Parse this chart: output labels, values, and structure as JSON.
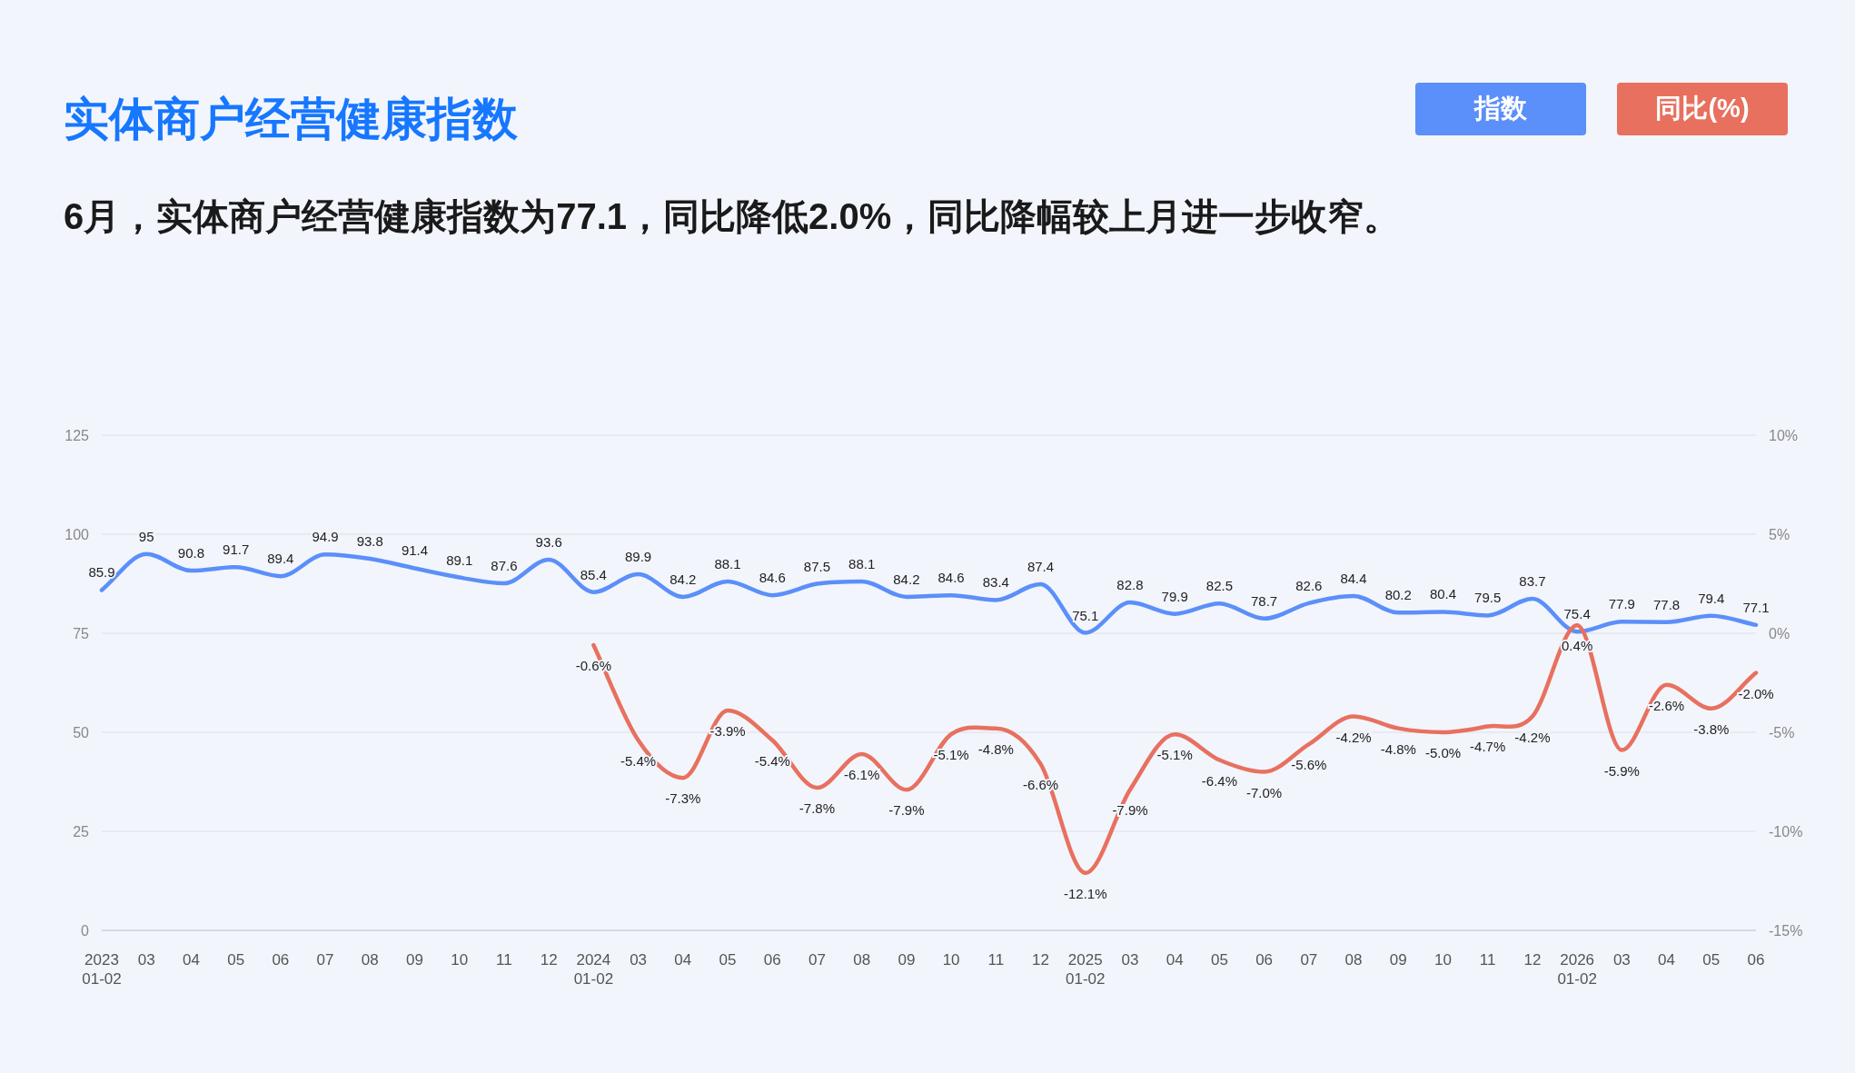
{
  "chart_data": {
    "type": "line",
    "title": "实体商户经营健康指数",
    "subtitle": "6月，实体商户经营健康指数为77.1，同比降低2.0%，同比降幅较上月进一步收窄。",
    "categories": [
      "2023 01-02",
      "03",
      "04",
      "05",
      "06",
      "07",
      "08",
      "09",
      "10",
      "11",
      "12",
      "2024 01-02",
      "03",
      "04",
      "05",
      "06",
      "07",
      "08",
      "09",
      "10",
      "11",
      "12",
      "2025 01-02",
      "03",
      "04",
      "05",
      "06",
      "07",
      "08",
      "09",
      "10",
      "11",
      "12",
      "2026 01-02",
      "03",
      "04",
      "05",
      "06"
    ],
    "series": [
      {
        "name": "指数",
        "color": "#5b8ff9",
        "values": [
          85.9,
          95,
          90.8,
          91.7,
          89.4,
          94.9,
          93.8,
          91.4,
          89.1,
          87.6,
          93.6,
          85.4,
          89.9,
          84.2,
          88.1,
          84.6,
          87.5,
          88.1,
          84.2,
          84.6,
          83.4,
          87.4,
          75.1,
          82.8,
          79.9,
          82.5,
          78.7,
          82.6,
          84.4,
          80.2,
          80.4,
          79.5,
          83.7,
          75.4,
          77.9,
          77.8,
          79.4,
          77.1
        ],
        "value_labels": [
          "85.9",
          "95",
          "90.8",
          "91.7",
          "89.4",
          "94.9",
          "93.8",
          "91.4",
          "89.1",
          "87.6",
          "93.6",
          "85.4",
          "89.9",
          "84.2",
          "88.1",
          "84.6",
          "87.5",
          "88.1",
          "84.2",
          "84.6",
          "83.4",
          "87.4",
          "75.1",
          "82.8",
          "79.9",
          "82.5",
          "78.7",
          "82.6",
          "84.4",
          "80.2",
          "80.4",
          "79.5",
          "83.7",
          "75.4",
          "77.9",
          "77.8",
          "79.4",
          "77.1"
        ]
      },
      {
        "name": "同比(%)",
        "color": "#e8705f",
        "axis": "y2",
        "values": [
          null,
          null,
          null,
          null,
          null,
          null,
          null,
          null,
          null,
          null,
          null,
          -0.6,
          -5.4,
          -7.3,
          -3.9,
          -5.4,
          -7.8,
          -6.1,
          -7.9,
          -5.1,
          -4.8,
          -6.6,
          -12.1,
          -7.9,
          -5.1,
          -6.4,
          -7.0,
          -5.6,
          -4.2,
          -4.8,
          -5.0,
          -4.7,
          -4.2,
          0.4,
          -5.9,
          -2.6,
          -3.8,
          -2.0
        ],
        "value_labels": [
          null,
          null,
          null,
          null,
          null,
          null,
          null,
          null,
          null,
          null,
          null,
          "-0.6%",
          "-5.4%",
          "-7.3%",
          "-3.9%",
          "-5.4%",
          "-7.8%",
          "-6.1%",
          "-7.9%",
          "-5.1%",
          "-4.8%",
          "-6.6%",
          "-12.1%",
          "-7.9%",
          "-5.1%",
          "-6.4%",
          "-7.0%",
          "-5.6%",
          "-4.2%",
          "-4.8%",
          "-5.0%",
          "-4.7%",
          "-4.2%",
          "0.4%",
          "-5.9%",
          "-2.6%",
          "-3.8%",
          "-2.0%"
        ]
      }
    ],
    "ylim": [
      0,
      125
    ],
    "yticks": [
      0,
      25,
      50,
      75,
      100,
      125
    ],
    "y2lim": [
      -15,
      10
    ],
    "y2ticks": [
      {
        "value": -15,
        "label": "-15%"
      },
      {
        "value": -10,
        "label": "-10%"
      },
      {
        "value": -5,
        "label": "-5%"
      },
      {
        "value": 0,
        "label": "0%"
      },
      {
        "value": 5,
        "label": "5%"
      },
      {
        "value": 10,
        "label": "10%"
      }
    ],
    "grid": "y",
    "legend": "top right"
  }
}
